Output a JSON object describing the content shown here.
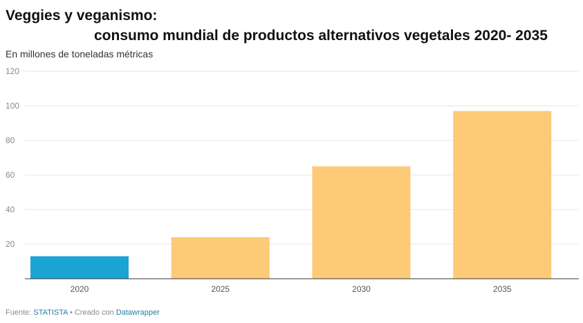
{
  "header": {
    "title_line1": "Veggies y veganismo:",
    "title_line2": "consumo mundial de productos alternativos vegetales 2020- 2035",
    "subtitle": "En millones de toneladas métricas"
  },
  "footer": {
    "source_label": "Fuente:",
    "source_name": "STATISTA",
    "separator": "•",
    "created_label": "Creado con",
    "tool_name": "Datawrapper"
  },
  "chart_data": {
    "type": "bar",
    "categories": [
      "2020",
      "2025",
      "2030",
      "2035"
    ],
    "values": [
      13,
      24,
      65,
      97
    ],
    "ylabel": "En millones de toneladas métricas",
    "ylim": [
      0,
      120
    ],
    "yticks": [
      20,
      40,
      60,
      80,
      100,
      120
    ],
    "grid": true,
    "colors": {
      "highlight": "#1ba3d3",
      "default": "#fdca77",
      "grid": "#e4e4e4",
      "axis": "#333333"
    },
    "highlight_index": 0
  }
}
